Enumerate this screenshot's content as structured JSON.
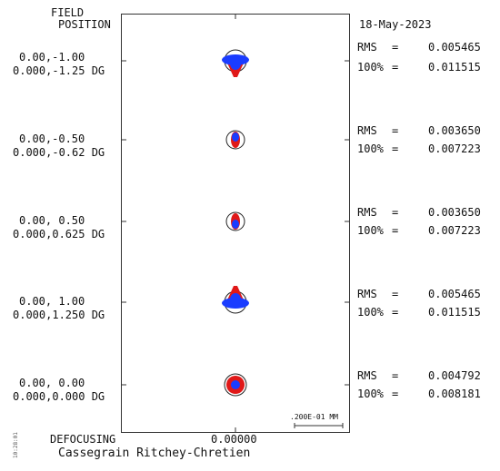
{
  "header": {
    "field_label_1": "FIELD",
    "field_label_2": "POSITION",
    "date": "18-May-2023"
  },
  "fields": [
    {
      "pos": "0.00,-1.00",
      "angle": "0.000,-1.25 DG",
      "rms_label": "RMS",
      "rms_eq": "=",
      "rms": "0.005465",
      "p100_label": "100%",
      "p100_eq": "=",
      "p100": "0.011515",
      "spot": "diamond-up"
    },
    {
      "pos": "0.00,-0.50",
      "angle": "0.000,-0.62 DG",
      "rms_label": "RMS",
      "rms_eq": "=",
      "rms": "0.003650",
      "p100_label": "100%",
      "p100_eq": "=",
      "p100": "0.007223",
      "spot": "small-up"
    },
    {
      "pos": "0.00, 0.50",
      "angle": "0.000,0.625 DG",
      "rms_label": "RMS",
      "rms_eq": "=",
      "rms": "0.003650",
      "p100_label": "100%",
      "p100_eq": "=",
      "p100": "0.007223",
      "spot": "small-down"
    },
    {
      "pos": "0.00, 1.00",
      "angle": "0.000,1.250 DG",
      "rms_label": "RMS",
      "rms_eq": "=",
      "rms": "0.005465",
      "p100_label": "100%",
      "p100_eq": "=",
      "p100": "0.011515",
      "spot": "diamond-down"
    },
    {
      "pos": "0.00, 0.00",
      "angle": "0.000,0.000 DG",
      "rms_label": "RMS",
      "rms_eq": "=",
      "rms": "0.004792",
      "p100_label": "100%",
      "p100_eq": "=",
      "p100": "0.008181",
      "spot": "round"
    }
  ],
  "footer": {
    "defocusing_label": "DEFOCUSING",
    "defocus_value": "0.00000",
    "scale_label": ".200E-01 MM",
    "title": "Cassegrain Ritchey-Chretien",
    "side_code": "10:28:01"
  },
  "colors": {
    "wavelength_1": "#e01818",
    "wavelength_2": "#1a3cff",
    "airy_circle": "#222222",
    "frame": "#333333"
  }
}
